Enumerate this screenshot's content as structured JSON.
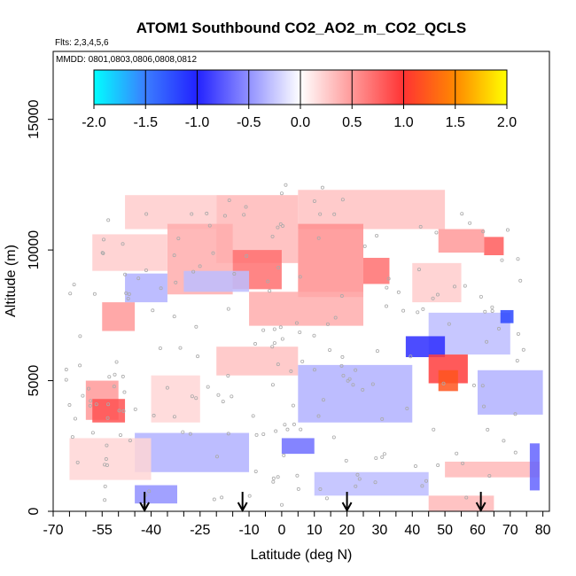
{
  "chart_data": {
    "type": "heatmap",
    "title": "ATOM1 Southbound CO2_AO2_m_CO2_QCLS",
    "flights_label": "Flts: 2,3,4,5,6",
    "dates_label": "MMDD: 0801,0803,0806,0808,0812",
    "xlabel": "Latitude (deg N)",
    "ylabel": "Altitude (m)",
    "xlim": [
      -70,
      82
    ],
    "ylim": [
      0,
      17600
    ],
    "x_ticks": [
      -70,
      -55,
      -40,
      -25,
      -10,
      0,
      10,
      20,
      30,
      40,
      50,
      60,
      70,
      80
    ],
    "y_ticks": [
      0,
      5000,
      10000,
      15000
    ],
    "colorbar": {
      "range": [
        -2.0,
        2.0
      ],
      "tick_labels": [
        "-2.0",
        "-1.5",
        "-1.0",
        "-0.5",
        "0.0",
        "0.5",
        "1.0",
        "1.5",
        "2.0"
      ],
      "colors": [
        "#00ffff",
        "#3b7dff",
        "#2222ff",
        "#ffffff",
        "#ff3333",
        "#ff8800",
        "#ffff00"
      ]
    },
    "arrow_latitudes": [
      -42,
      -12,
      20,
      61
    ],
    "cells": [
      {
        "lat": [
          -48,
          -20
        ],
        "alt": [
          10800,
          12100
        ],
        "value": 0.25
      },
      {
        "lat": [
          -20,
          5
        ],
        "alt": [
          9500,
          12100
        ],
        "value": 0.35
      },
      {
        "lat": [
          5,
          50
        ],
        "alt": [
          10800,
          12300
        ],
        "value": 0.3
      },
      {
        "lat": [
          -35,
          -15
        ],
        "alt": [
          8300,
          11000
        ],
        "value": 0.4
      },
      {
        "lat": [
          -15,
          0
        ],
        "alt": [
          8500,
          10000
        ],
        "value": 0.7
      },
      {
        "lat": [
          5,
          25
        ],
        "alt": [
          8200,
          11000
        ],
        "value": 0.55
      },
      {
        "lat": [
          25,
          33
        ],
        "alt": [
          8700,
          9700
        ],
        "value": 0.7
      },
      {
        "lat": [
          -58,
          -35
        ],
        "alt": [
          9200,
          10600
        ],
        "value": 0.25
      },
      {
        "lat": [
          -10,
          25
        ],
        "alt": [
          7100,
          8400
        ],
        "value": 0.4
      },
      {
        "lat": [
          -55,
          -45
        ],
        "alt": [
          6900,
          8000
        ],
        "value": 0.5
      },
      {
        "lat": [
          48,
          62
        ],
        "alt": [
          9900,
          10800
        ],
        "value": 0.5
      },
      {
        "lat": [
          40,
          55
        ],
        "alt": [
          8000,
          9500
        ],
        "value": 0.25
      },
      {
        "lat": [
          62,
          68
        ],
        "alt": [
          9800,
          10500
        ],
        "value": 0.8
      },
      {
        "lat": [
          -48,
          -35
        ],
        "alt": [
          8000,
          9100
        ],
        "value": -0.35
      },
      {
        "lat": [
          -30,
          -10
        ],
        "alt": [
          8400,
          9200
        ],
        "value": -0.3
      },
      {
        "lat": [
          45,
          70
        ],
        "alt": [
          6000,
          7600
        ],
        "value": -0.3
      },
      {
        "lat": [
          67,
          71
        ],
        "alt": [
          7200,
          7700
        ],
        "value": -1.2
      },
      {
        "lat": [
          38,
          50
        ],
        "alt": [
          5900,
          6700
        ],
        "value": -0.95
      },
      {
        "lat": [
          45,
          57
        ],
        "alt": [
          4900,
          6000
        ],
        "value": 0.95
      },
      {
        "lat": [
          48,
          54
        ],
        "alt": [
          4600,
          5400
        ],
        "value": 1.2
      },
      {
        "lat": [
          -20,
          5
        ],
        "alt": [
          5200,
          6300
        ],
        "value": 0.3
      },
      {
        "lat": [
          5,
          40
        ],
        "alt": [
          3400,
          5600
        ],
        "value": -0.35
      },
      {
        "lat": [
          60,
          80
        ],
        "alt": [
          3700,
          5400
        ],
        "value": -0.35
      },
      {
        "lat": [
          -60,
          -50
        ],
        "alt": [
          3500,
          5000
        ],
        "value": 0.5
      },
      {
        "lat": [
          -58,
          -48
        ],
        "alt": [
          3400,
          4300
        ],
        "value": 0.85
      },
      {
        "lat": [
          -40,
          -25
        ],
        "alt": [
          3400,
          5200
        ],
        "value": 0.2
      },
      {
        "lat": [
          -45,
          -10
        ],
        "alt": [
          1500,
          3000
        ],
        "value": -0.35
      },
      {
        "lat": [
          0,
          10
        ],
        "alt": [
          2200,
          2800
        ],
        "value": -0.65
      },
      {
        "lat": [
          10,
          45
        ],
        "alt": [
          600,
          1500
        ],
        "value": -0.3
      },
      {
        "lat": [
          -45,
          -32
        ],
        "alt": [
          300,
          1000
        ],
        "value": -0.5
      },
      {
        "lat": [
          50,
          79
        ],
        "alt": [
          1300,
          1900
        ],
        "value": 0.35
      },
      {
        "lat": [
          76,
          79
        ],
        "alt": [
          800,
          2600
        ],
        "value": -0.7
      },
      {
        "lat": [
          -65,
          -40
        ],
        "alt": [
          1200,
          2800
        ],
        "value": 0.2
      },
      {
        "lat": [
          45,
          65
        ],
        "alt": [
          0,
          600
        ],
        "value": 0.35
      }
    ]
  }
}
